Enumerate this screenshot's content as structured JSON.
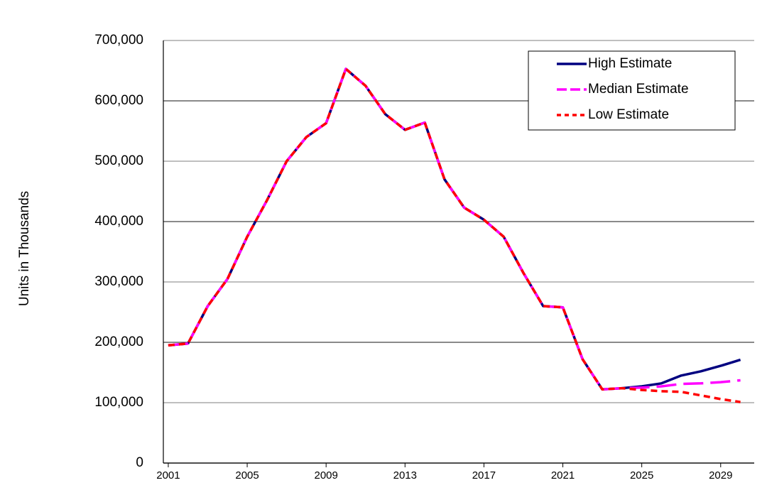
{
  "chart_data": {
    "type": "line",
    "y_label": "Units in Thousands",
    "x": [
      2001,
      2002,
      2003,
      2004,
      2005,
      2006,
      2007,
      2008,
      2009,
      2010,
      2011,
      2012,
      2013,
      2014,
      2015,
      2016,
      2017,
      2018,
      2019,
      2020,
      2021,
      2022,
      2023,
      2024,
      2025,
      2026,
      2027,
      2028,
      2029,
      2030
    ],
    "series": [
      {
        "name": "High Estimate",
        "color": "#000080",
        "values": [
          195000,
          198000,
          260000,
          305000,
          375000,
          435000,
          500000,
          540000,
          563000,
          653000,
          625000,
          578000,
          552000,
          564000,
          470000,
          423000,
          403000,
          375000,
          315000,
          260000,
          258000,
          172000,
          122000,
          124000,
          127000,
          132000,
          145000,
          152000,
          161000,
          171000
        ]
      },
      {
        "name": "Median Estimate",
        "color": "#ff00ff",
        "values": [
          195000,
          198000,
          260000,
          305000,
          375000,
          435000,
          500000,
          540000,
          563000,
          653000,
          625000,
          578000,
          552000,
          564000,
          470000,
          423000,
          403000,
          375000,
          315000,
          260000,
          258000,
          172000,
          122000,
          124000,
          125000,
          127000,
          131000,
          132000,
          134000,
          137000
        ]
      },
      {
        "name": "Low Estimate",
        "color": "#ff0000",
        "values": [
          195000,
          198000,
          260000,
          305000,
          375000,
          435000,
          500000,
          540000,
          563000,
          653000,
          625000,
          578000,
          552000,
          564000,
          470000,
          423000,
          403000,
          375000,
          315000,
          260000,
          258000,
          172000,
          122000,
          124000,
          121000,
          119000,
          118000,
          112000,
          106000,
          101000
        ]
      }
    ],
    "xlim": [
      2000.75,
      2030.7
    ],
    "xticks": [
      2001,
      2005,
      2009,
      2013,
      2017,
      2021,
      2025,
      2029
    ],
    "ylim": [
      0,
      700000
    ],
    "yticks": [
      0,
      {
        "value": 100000,
        "label": "100,000"
      },
      {
        "value": 200000,
        "label": "200,000"
      },
      {
        "value": 300000,
        "label": "300,000"
      },
      {
        "value": 400000,
        "label": "400,000"
      },
      {
        "value": 500000,
        "label": "500,000"
      },
      {
        "value": 600000,
        "label": "600,000"
      },
      {
        "value": 700000,
        "label": "700,000"
      }
    ],
    "grid": true,
    "legend": "upper right"
  }
}
